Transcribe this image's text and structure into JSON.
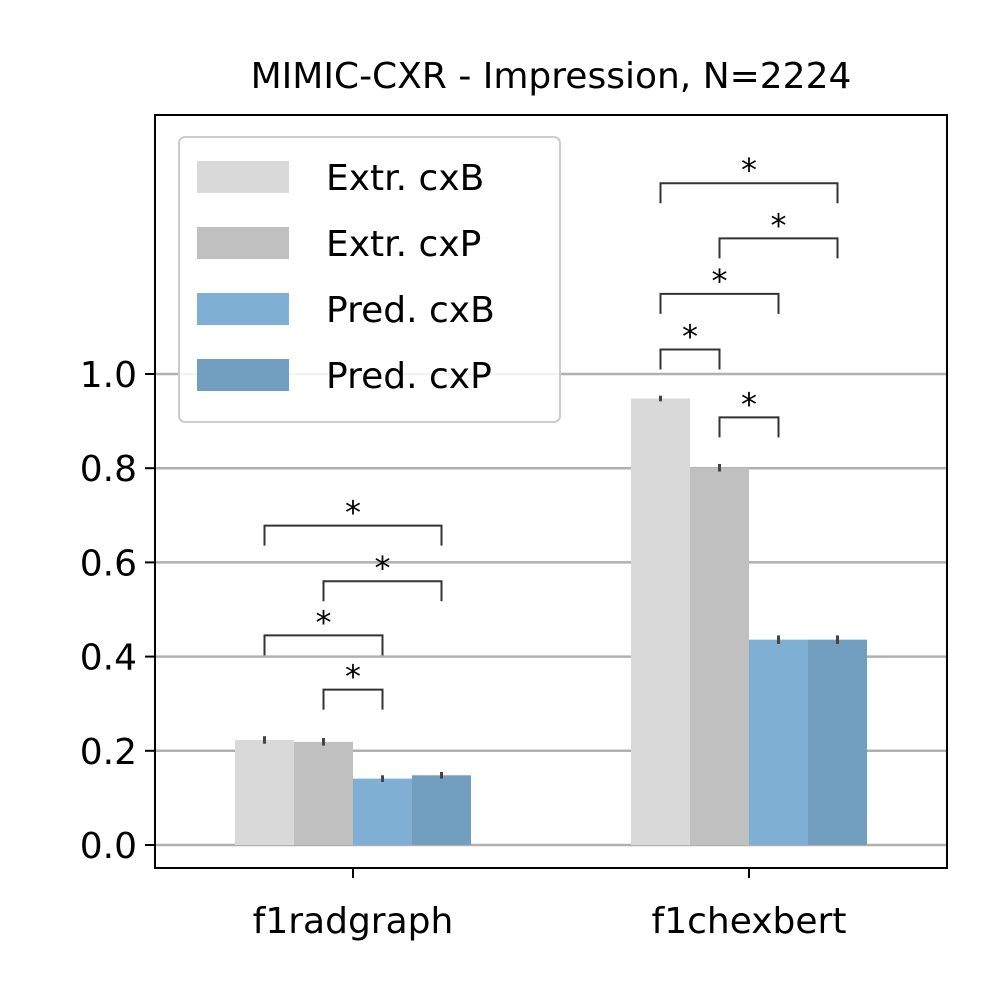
{
  "chart_data": {
    "type": "bar",
    "title": "MIMIC-CXR - Impression, N=2224",
    "xlabel": "",
    "ylabel": "",
    "categories": [
      "f1radgraph",
      "f1chexbert"
    ],
    "ylim": [
      -0.05,
      1.53
    ],
    "yticks": [
      0.0,
      0.2,
      0.4,
      0.6,
      0.8,
      1.0
    ],
    "ytick_labels": [
      "0.0",
      "0.2",
      "0.4",
      "0.6",
      "0.8",
      "1.0"
    ],
    "grid": true,
    "legend_position": "top-left",
    "series": [
      {
        "name": "Extr. cxB",
        "color": "#d9d9d9",
        "values": [
          0.223,
          0.948
        ],
        "errors": [
          0.008,
          0.006
        ]
      },
      {
        "name": "Extr. cxP",
        "color": "#c0c0c0",
        "values": [
          0.219,
          0.801
        ],
        "errors": [
          0.008,
          0.008
        ]
      },
      {
        "name": "Pred. cxB",
        "color": "#7fb0d4",
        "values": [
          0.141,
          0.436
        ],
        "errors": [
          0.007,
          0.009
        ]
      },
      {
        "name": "Pred. cxP",
        "color": "#729fc0",
        "values": [
          0.148,
          0.436
        ],
        "errors": [
          0.007,
          0.009
        ]
      }
    ],
    "significance": [
      {
        "category": 0,
        "from": 1,
        "to": 2,
        "label": "*",
        "level": 0.33
      },
      {
        "category": 0,
        "from": 0,
        "to": 2,
        "label": "*",
        "level": 0.445
      },
      {
        "category": 0,
        "from": 1,
        "to": 3,
        "label": "*",
        "level": 0.56
      },
      {
        "category": 0,
        "from": 0,
        "to": 3,
        "label": "*",
        "level": 0.678
      },
      {
        "category": 1,
        "from": 1,
        "to": 2,
        "label": "*",
        "level": 0.908
      },
      {
        "category": 1,
        "from": 0,
        "to": 1,
        "label": "*",
        "level": 1.052
      },
      {
        "category": 1,
        "from": 0,
        "to": 2,
        "label": "*",
        "level": 1.17
      },
      {
        "category": 1,
        "from": 1,
        "to": 3,
        "label": "*",
        "level": 1.288
      },
      {
        "category": 1,
        "from": 0,
        "to": 3,
        "label": "*",
        "level": 1.405
      }
    ]
  }
}
